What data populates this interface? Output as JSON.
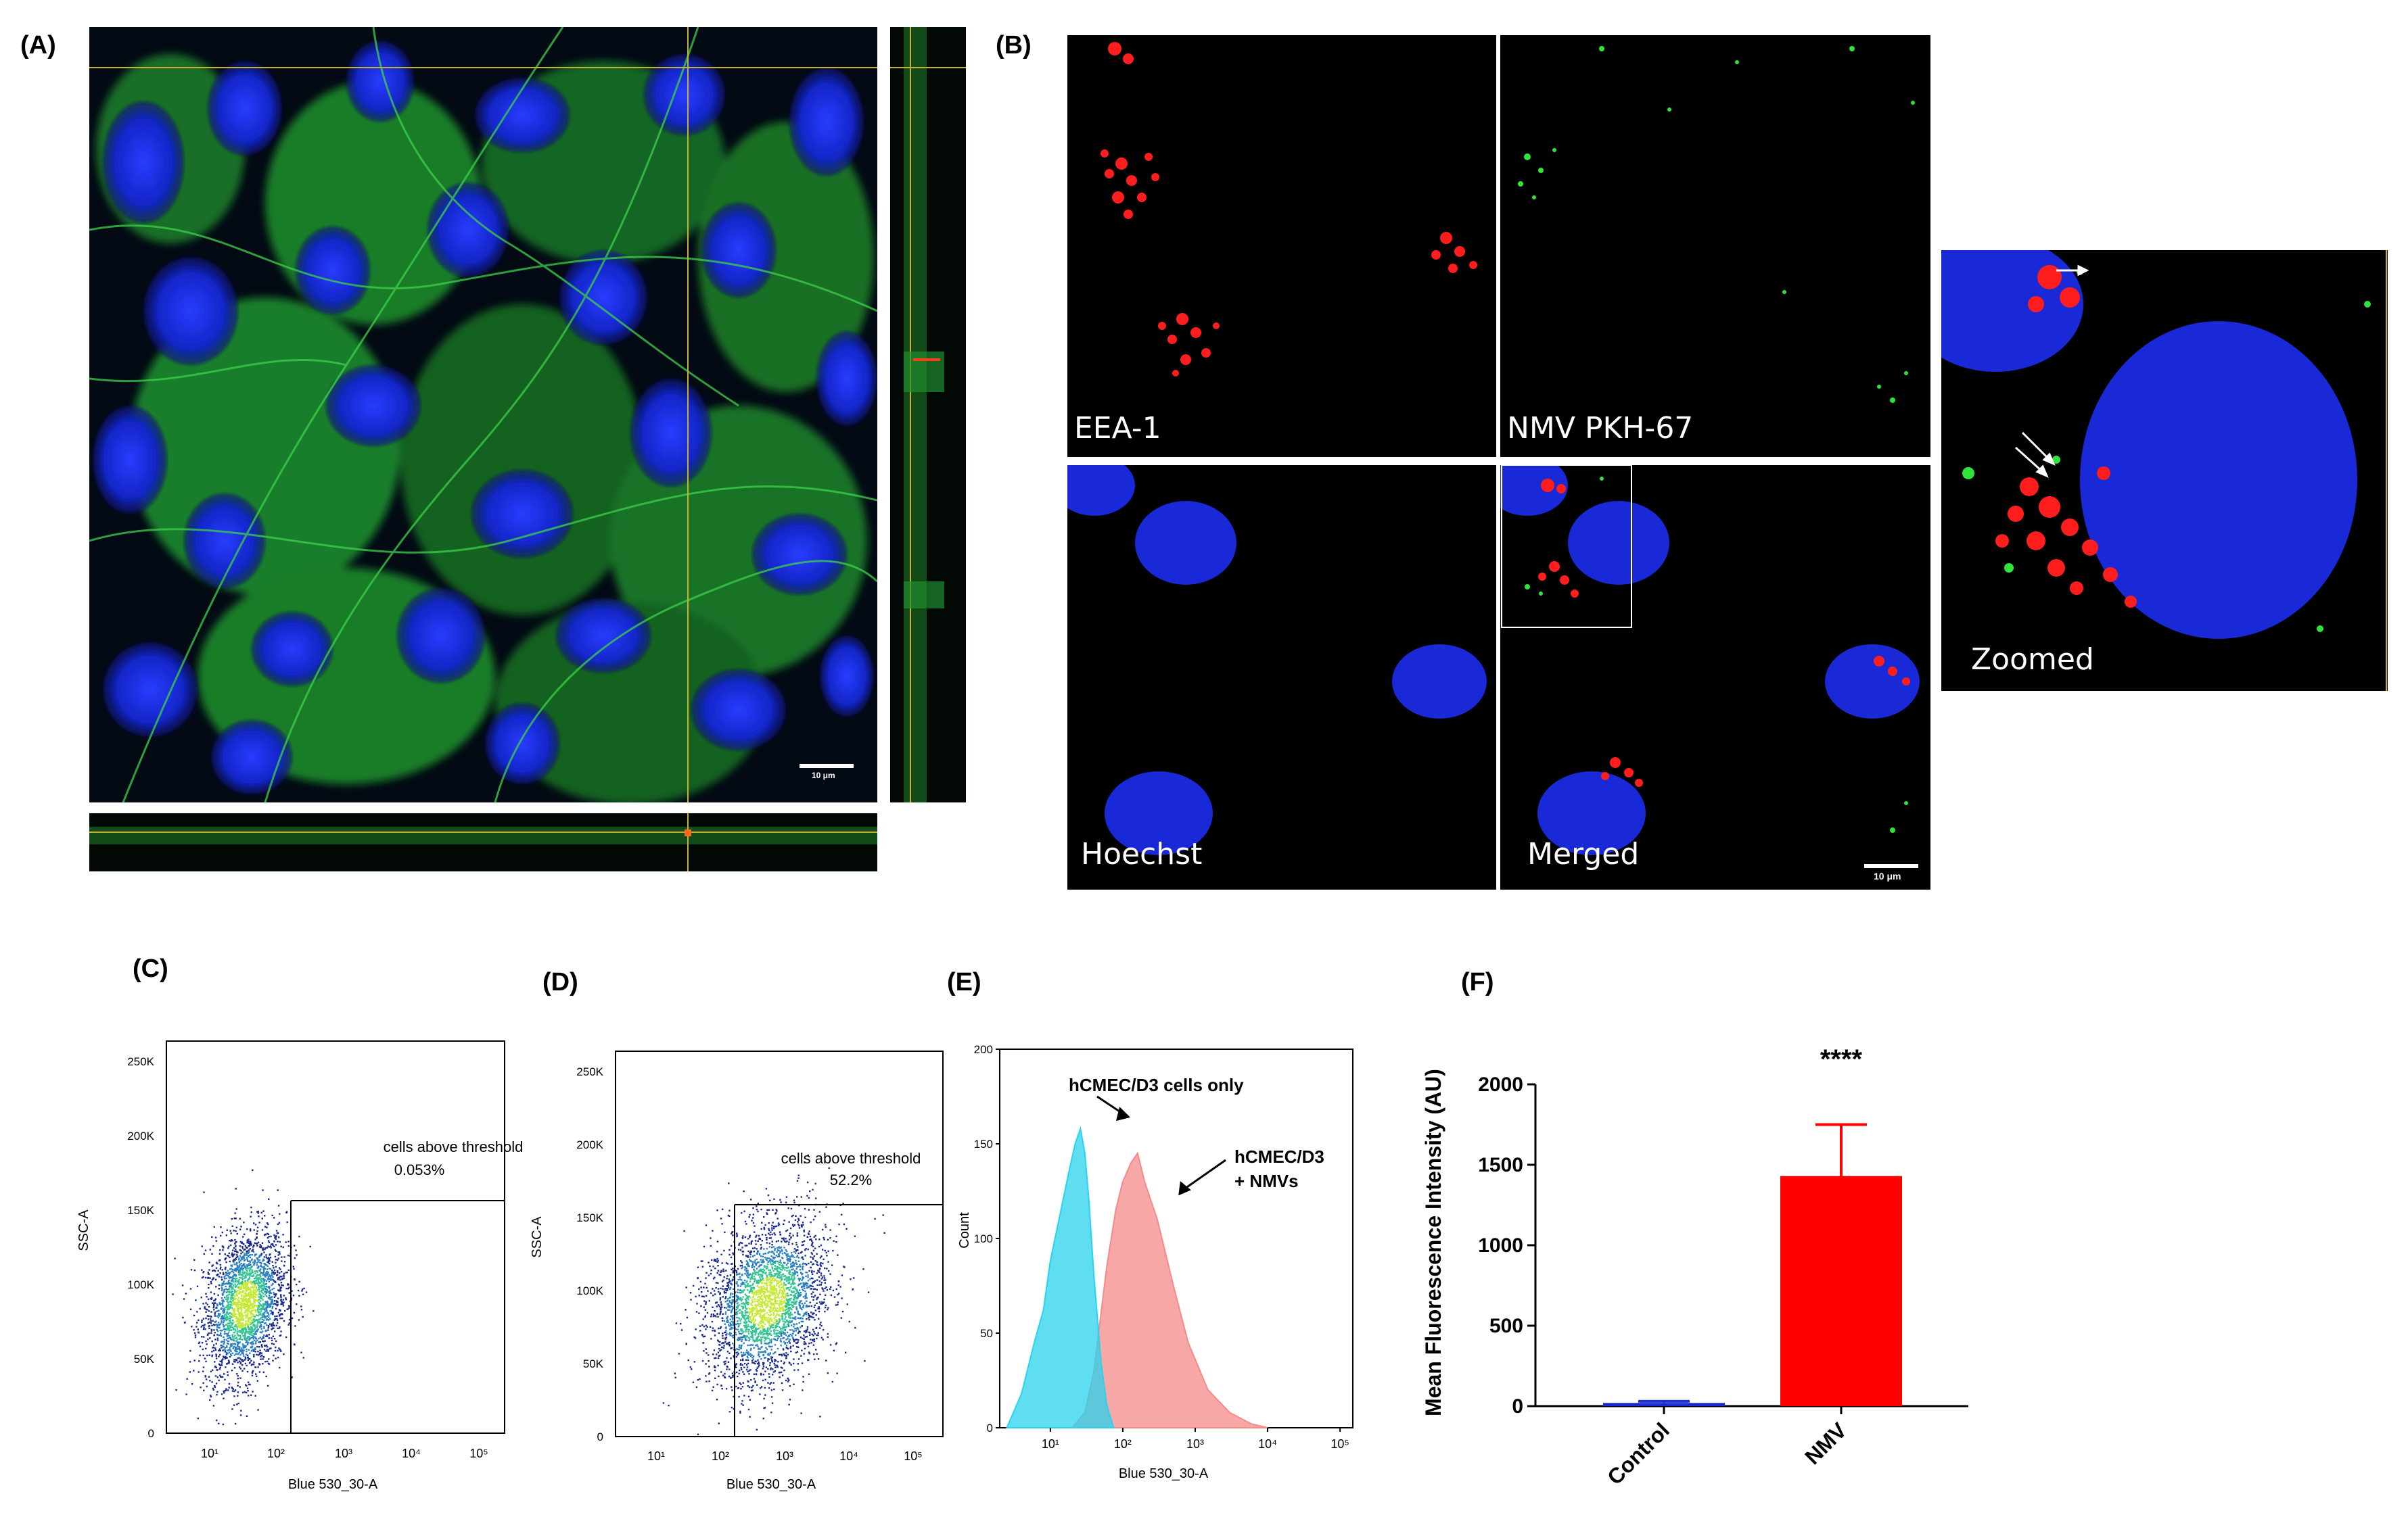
{
  "panels": {
    "A": {
      "label": "(A)",
      "scalebar": "10 μm"
    },
    "B": {
      "label": "(B)",
      "channels": [
        "EEA-1",
        "NMV PKH-67",
        "Hoechst",
        "Merged",
        "Zoomed"
      ],
      "scalebar": "10 μm"
    },
    "C": {
      "label": "(C)",
      "gate_name": "cells above threshold",
      "gate_value": "0.053%",
      "xlabel": "Blue 530_30-A",
      "ylabel": "SSC-A"
    },
    "D": {
      "label": "(D)",
      "gate_name": "cells above threshold",
      "gate_value": "52.2%",
      "xlabel": "Blue 530_30-A",
      "ylabel": "SSC-A"
    },
    "E": {
      "label": "(E)",
      "xlabel": "Blue 530_30-A",
      "ylabel": "Count",
      "annot1": "hCMEC/D3 cells only",
      "annot2a": "hCMEC/D3",
      "annot2b": "+ NMVs"
    },
    "F": {
      "label": "(F)",
      "ylabel": "Mean Fluorescence Intensity (AU)",
      "significance": "****"
    }
  },
  "flow_axes": {
    "y_ticks": [
      "0",
      "50K",
      "100K",
      "150K",
      "200K",
      "250K"
    ],
    "x_ticks": [
      "10¹",
      "10²",
      "10³",
      "10⁴",
      "10⁵"
    ]
  },
  "chart_data": [
    {
      "type": "scatter",
      "panel": "C",
      "xlabel": "Blue 530_30-A",
      "ylabel": "SSC-A",
      "x_scale": "log",
      "ylim": [
        0,
        250000
      ],
      "gate": {
        "name": "cells above threshold",
        "percent": 0.053
      },
      "population": {
        "x_range": [
          3,
          80
        ],
        "y_range": [
          30000,
          135000
        ]
      }
    },
    {
      "type": "scatter",
      "panel": "D",
      "xlabel": "Blue 530_30-A",
      "ylabel": "SSC-A",
      "x_scale": "log",
      "ylim": [
        0,
        250000
      ],
      "gate": {
        "name": "cells above threshold",
        "percent": 52.2
      },
      "population": {
        "x_range": [
          20,
          3000
        ],
        "y_range": [
          30000,
          145000
        ]
      }
    },
    {
      "type": "area",
      "panel": "E",
      "xlabel": "Blue 530_30-A",
      "ylabel": "Count",
      "x_scale": "log",
      "ylim": [
        0,
        200
      ],
      "y_ticks": [
        0,
        50,
        100,
        150,
        200
      ],
      "x_ticks": [
        "10¹",
        "10²",
        "10³",
        "10⁴",
        "10⁵"
      ],
      "series": [
        {
          "name": "hCMEC/D3 cells only",
          "color": "#29d3ee",
          "x": [
            2.5,
            4,
            6,
            8,
            10,
            14,
            18,
            22,
            26,
            30,
            34,
            40,
            50,
            60,
            75
          ],
          "y": [
            0,
            18,
            45,
            62,
            88,
            115,
            135,
            150,
            158,
            145,
            120,
            80,
            35,
            12,
            0
          ]
        },
        {
          "name": "hCMEC/D3 + NMVs",
          "color": "#f58a8a",
          "x": [
            20,
            30,
            40,
            60,
            80,
            100,
            130,
            160,
            200,
            300,
            500,
            800,
            1500,
            3000,
            6000,
            10000
          ],
          "y": [
            0,
            8,
            30,
            85,
            115,
            130,
            140,
            145,
            130,
            110,
            75,
            45,
            20,
            8,
            2,
            0
          ]
        }
      ]
    },
    {
      "type": "bar",
      "panel": "F",
      "categories": [
        "Control",
        "NMV"
      ],
      "values": [
        20,
        1430
      ],
      "errors": [
        10,
        320
      ],
      "colors": [
        "#1a2bd6",
        "#ff0000"
      ],
      "ylabel": "Mean Fluorescence Intensity (AU)",
      "ylim": [
        0,
        2000
      ],
      "y_ticks": [
        0,
        500,
        1000,
        1500,
        2000
      ],
      "annotation": "****"
    }
  ]
}
